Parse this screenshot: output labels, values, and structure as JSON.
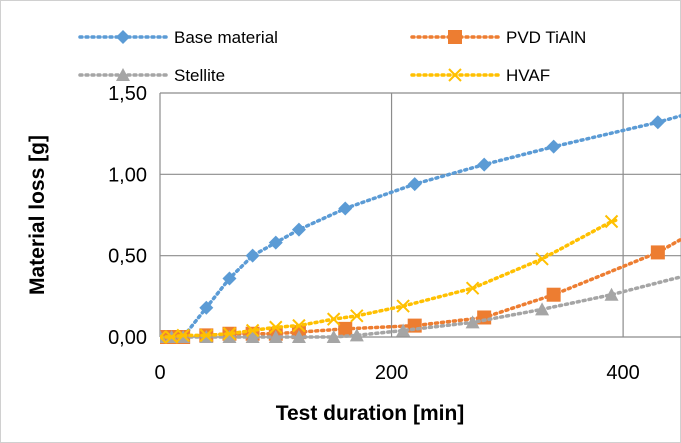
{
  "chart_data": {
    "type": "line",
    "title": "",
    "xlabel": "Test duration [min]",
    "ylabel": "Material loss [g]",
    "xlim": [
      0,
      450
    ],
    "ylim": [
      0,
      1.5
    ],
    "x_ticks": [
      "0",
      "200",
      "400"
    ],
    "x_tick_values": [
      0,
      200,
      400
    ],
    "y_ticks": [
      "0,00",
      "0,50",
      "1,00",
      "1,50"
    ],
    "y_tick_values": [
      0,
      0.5,
      1.0,
      1.5
    ],
    "grid": "major gridlines on both axes",
    "legend_position": "top",
    "series": [
      {
        "name": "Base material",
        "color": "#5b9bd5",
        "marker": "diamond",
        "x": [
          0,
          10,
          20,
          40,
          60,
          80,
          100,
          120,
          160,
          220,
          280,
          340,
          430
        ],
        "y": [
          0.0,
          0.0,
          0.0,
          0.18,
          0.36,
          0.5,
          0.58,
          0.66,
          0.79,
          0.94,
          1.06,
          1.17,
          1.32
        ]
      },
      {
        "name": "PVD TiAlN",
        "color": "#ed7d31",
        "marker": "square",
        "x": [
          0,
          10,
          20,
          40,
          60,
          80,
          100,
          120,
          160,
          220,
          280,
          340,
          430
        ],
        "y": [
          0.0,
          0.0,
          0.0,
          0.01,
          0.02,
          0.02,
          0.02,
          0.03,
          0.05,
          0.07,
          0.12,
          0.26,
          0.52
        ]
      },
      {
        "name": "Stellite",
        "color": "#a5a5a5",
        "marker": "triangle",
        "x": [
          0,
          10,
          20,
          40,
          60,
          80,
          100,
          120,
          150,
          170,
          210,
          270,
          330,
          390
        ],
        "y": [
          0.0,
          0.0,
          0.0,
          0.0,
          0.0,
          0.0,
          0.0,
          0.0,
          0.0,
          0.01,
          0.04,
          0.09,
          0.17,
          0.26
        ]
      },
      {
        "name": "HVAF",
        "color": "#ffc000",
        "marker": "x",
        "x": [
          0,
          10,
          20,
          40,
          60,
          80,
          100,
          120,
          150,
          170,
          210,
          270,
          330,
          390
        ],
        "y": [
          0.0,
          0.0,
          0.01,
          0.01,
          0.02,
          0.04,
          0.06,
          0.07,
          0.11,
          0.13,
          0.19,
          0.3,
          0.48,
          0.71
        ]
      }
    ]
  }
}
